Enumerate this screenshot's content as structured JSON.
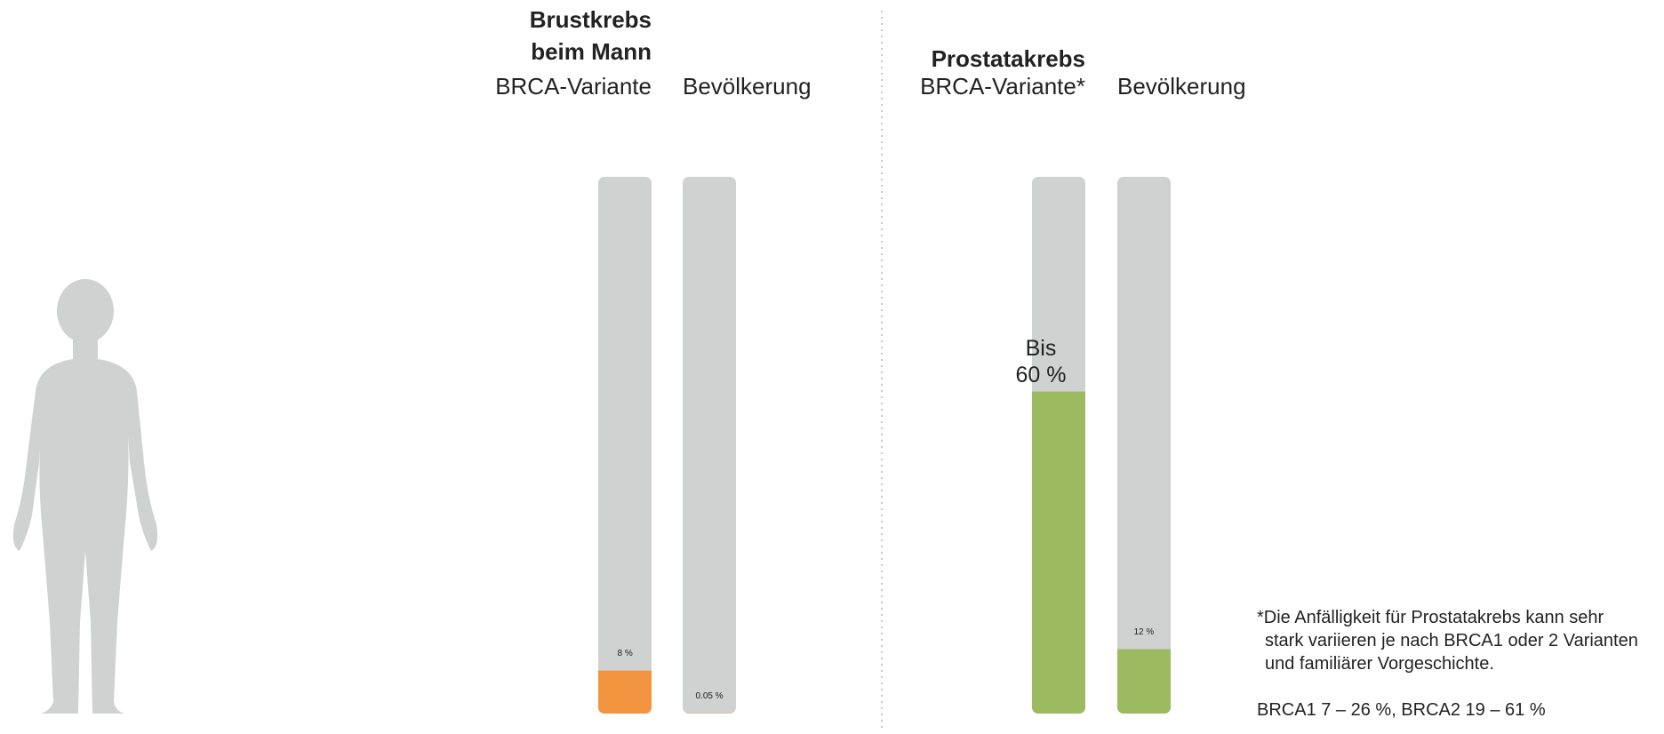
{
  "chart_data": [
    {
      "type": "bar",
      "title": "Brustkrebs beim Mann",
      "categories": [
        "BRCA-Variante",
        "Bevölkerung"
      ],
      "values": [
        8,
        0.05
      ],
      "value_labels": [
        "8 %",
        "0.05 %"
      ],
      "color": "#f39440",
      "ylim": [
        0,
        100
      ]
    },
    {
      "type": "bar",
      "title": "Prostatakrebs",
      "categories": [
        "BRCA-Variante*",
        "Bevölkerung"
      ],
      "values": [
        60,
        12
      ],
      "value_labels": [
        "Bis 60 %",
        "12 %"
      ],
      "color": "#9cba5f",
      "ylim": [
        0,
        100
      ]
    }
  ],
  "notes": [
    "*Die Anfälligkeit für Prostatakrebs kann sehr",
    "stark variieren je nach BRCA1 oder 2 Varianten",
    "und familiärer Vorgeschichte."
  ],
  "range_note": "BRCA1 7 – 26 %, BRCA2 19 – 61 %"
}
